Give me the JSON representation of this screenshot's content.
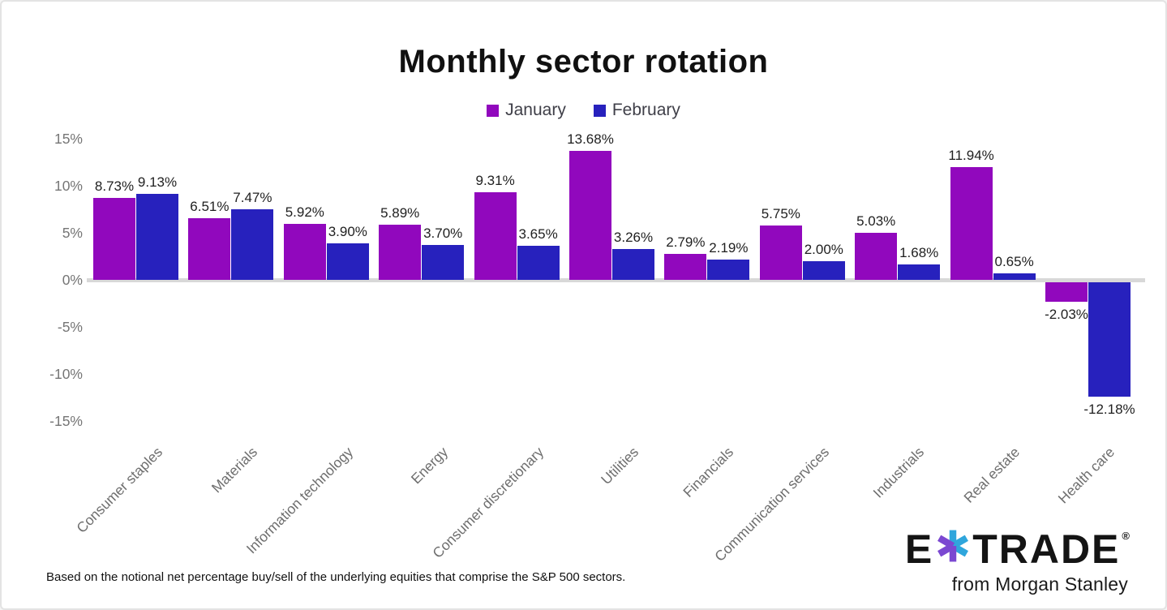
{
  "title": "Monthly sector rotation",
  "footnote": "Based on the notional net percentage buy/sell of the underlying equities that comprise the S&P 500 sectors.",
  "logo": {
    "prefix": "E",
    "suffix": "TRADE",
    "registered": "®",
    "tagline": "from Morgan Stanley",
    "asterisk_purple": "#7b48d1",
    "asterisk_cyan": "#2fa6dc"
  },
  "chart_data": {
    "type": "bar",
    "title": "Monthly sector rotation",
    "categories": [
      "Consumer staples",
      "Materials",
      "Information technology",
      "Energy",
      "Consumer discretionary",
      "Utilities",
      "Financials",
      "Communication services",
      "Industrials",
      "Real estate",
      "Health care"
    ],
    "series": [
      {
        "name": "January",
        "color": "#9108bd",
        "values": [
          8.73,
          6.51,
          5.92,
          5.89,
          9.31,
          13.68,
          2.79,
          5.75,
          5.03,
          11.94,
          -2.03
        ]
      },
      {
        "name": "February",
        "color": "#2721bd",
        "values": [
          9.13,
          7.47,
          3.9,
          3.7,
          3.65,
          3.26,
          2.19,
          2.0,
          1.68,
          0.65,
          -12.18
        ]
      }
    ],
    "value_label_suffix": "%",
    "value_label_decimals": 2,
    "y_ticks": [
      "15%",
      "10%",
      "5%",
      "0%",
      "-5%",
      "-10%",
      "-15%"
    ],
    "ylim": [
      -15,
      15
    ],
    "xlabel": "",
    "ylabel": "",
    "grid": false,
    "legend_position": "top",
    "axis_text_color": "#757575",
    "category_text_color": "#6e6e6e",
    "value_label_color": "#1f1f1f",
    "zero_line_color": "#d8d8d8"
  }
}
